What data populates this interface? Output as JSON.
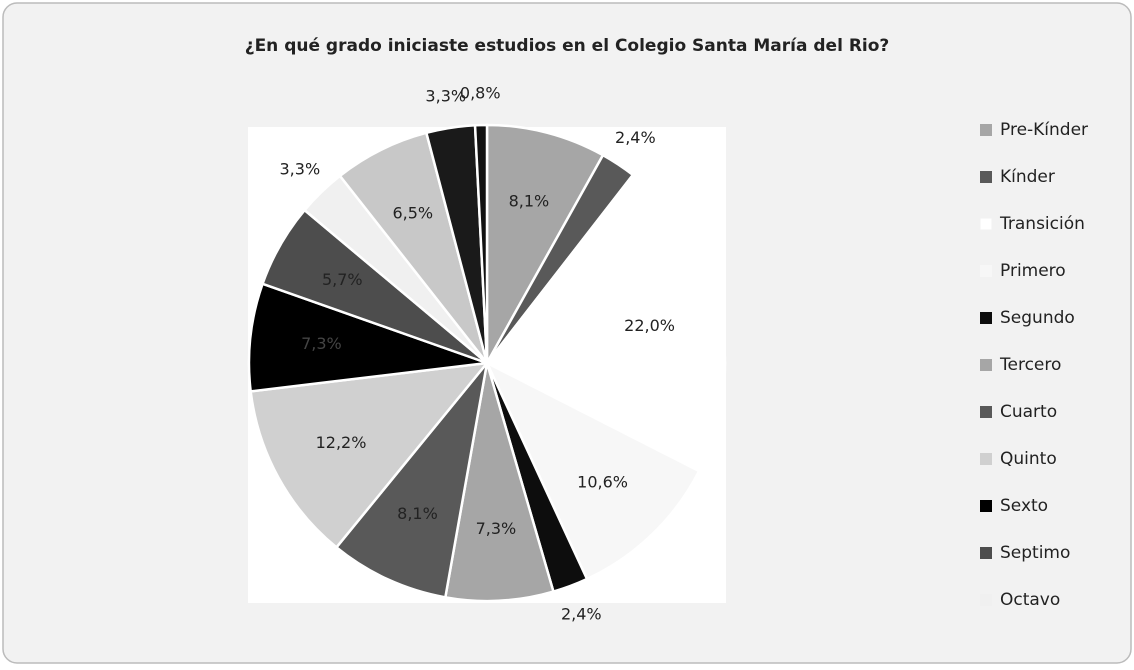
{
  "chart_data": {
    "type": "pie",
    "title": "¿En qué grado iniciaste estudios en el Colegio Santa María del Rio?",
    "categories": [
      "Pre-Kínder",
      "Kínder",
      "Transición",
      "Primero",
      "Segundo",
      "Tercero",
      "Cuarto",
      "Quinto",
      "Sexto",
      "Septimo",
      "Octavo",
      null,
      null,
      null
    ],
    "values": [
      8.1,
      2.4,
      22.0,
      10.6,
      2.4,
      7.3,
      8.1,
      12.2,
      7.3,
      5.7,
      3.3,
      6.5,
      3.3,
      0.8
    ],
    "value_labels": [
      "8,1%",
      "2,4%",
      "22,0%",
      "10,6%",
      "2,4%",
      "7,3%",
      "8,1%",
      "12,2%",
      "7,3%",
      "5,7%",
      "3,3%",
      "6,5%",
      "3,3%",
      "0,8%"
    ],
    "colors": [
      "#a6a6a6",
      "#595959",
      "#ffffff",
      "#f7f7f7",
      "#0d0d0d",
      "#a6a6a6",
      "#595959",
      "#d0d0d0",
      "#000000",
      "#4d4d4d",
      "#f0f0f0",
      "#c8c8c8",
      "#1a1a1a",
      "#111111"
    ],
    "legend": "right"
  }
}
